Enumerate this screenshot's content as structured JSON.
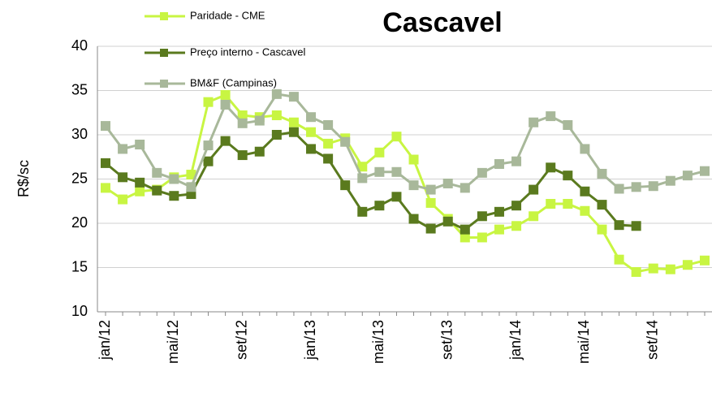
{
  "chart_data": {
    "type": "line",
    "title": "Cascavel",
    "y_label": "R$/sc",
    "categories": [
      "jan/12",
      null,
      null,
      null,
      "mai/12",
      null,
      null,
      null,
      "set/12",
      null,
      null,
      null,
      "jan/13",
      null,
      null,
      null,
      "mai/13",
      null,
      null,
      null,
      "set/13",
      null,
      null,
      null,
      "jan/14",
      null,
      null,
      null,
      "mai/14",
      null,
      null,
      null,
      "set/14",
      null,
      null,
      null
    ],
    "series": [
      {
        "name": "Paridade - CME",
        "color": "#c8f542",
        "values": [
          24,
          22.7,
          23.6,
          23.8,
          25.2,
          25.5,
          33.7,
          34.5,
          32.2,
          32,
          32.2,
          31.4,
          30.3,
          29,
          29.6,
          26.4,
          28,
          29.8,
          27.2,
          22.3,
          20.5,
          18.4,
          18.4,
          19.3,
          19.7,
          20.8,
          22.2,
          22.2,
          21.4,
          19.3,
          15.9,
          14.5,
          14.9,
          14.8,
          15.3,
          15.8
        ]
      },
      {
        "name": "Preço interno - Cascavel",
        "color": "#5a7a1e",
        "values": [
          26.8,
          25.2,
          24.6,
          23.7,
          23.1,
          23.3,
          27,
          29.3,
          27.7,
          28.1,
          30,
          30.3,
          28.4,
          27.3,
          24.3,
          21.3,
          22,
          23,
          20.5,
          19.4,
          20.2,
          19.3,
          20.8,
          21.3,
          22,
          23.8,
          26.3,
          25.4,
          23.6,
          22.1,
          19.8,
          19.7,
          null,
          null,
          null,
          null
        ]
      },
      {
        "name": "BM&F (Campinas)",
        "color": "#a8b89a",
        "values": [
          31,
          28.4,
          28.9,
          25.7,
          25,
          24.1,
          28.8,
          33.4,
          31.3,
          31.6,
          34.6,
          34.3,
          32,
          31.1,
          29.2,
          25.1,
          25.8,
          25.8,
          24.3,
          23.8,
          24.5,
          24,
          25.7,
          26.7,
          27,
          31.4,
          32.1,
          31.1,
          28.4,
          25.6,
          23.9,
          24.1,
          24.2,
          24.8,
          25.4,
          25.9
        ]
      }
    ],
    "ylim": [
      10,
      40
    ],
    "yticks": [
      10,
      15,
      20,
      25,
      30,
      35,
      40
    ],
    "grid": true,
    "legend": "upper left"
  }
}
